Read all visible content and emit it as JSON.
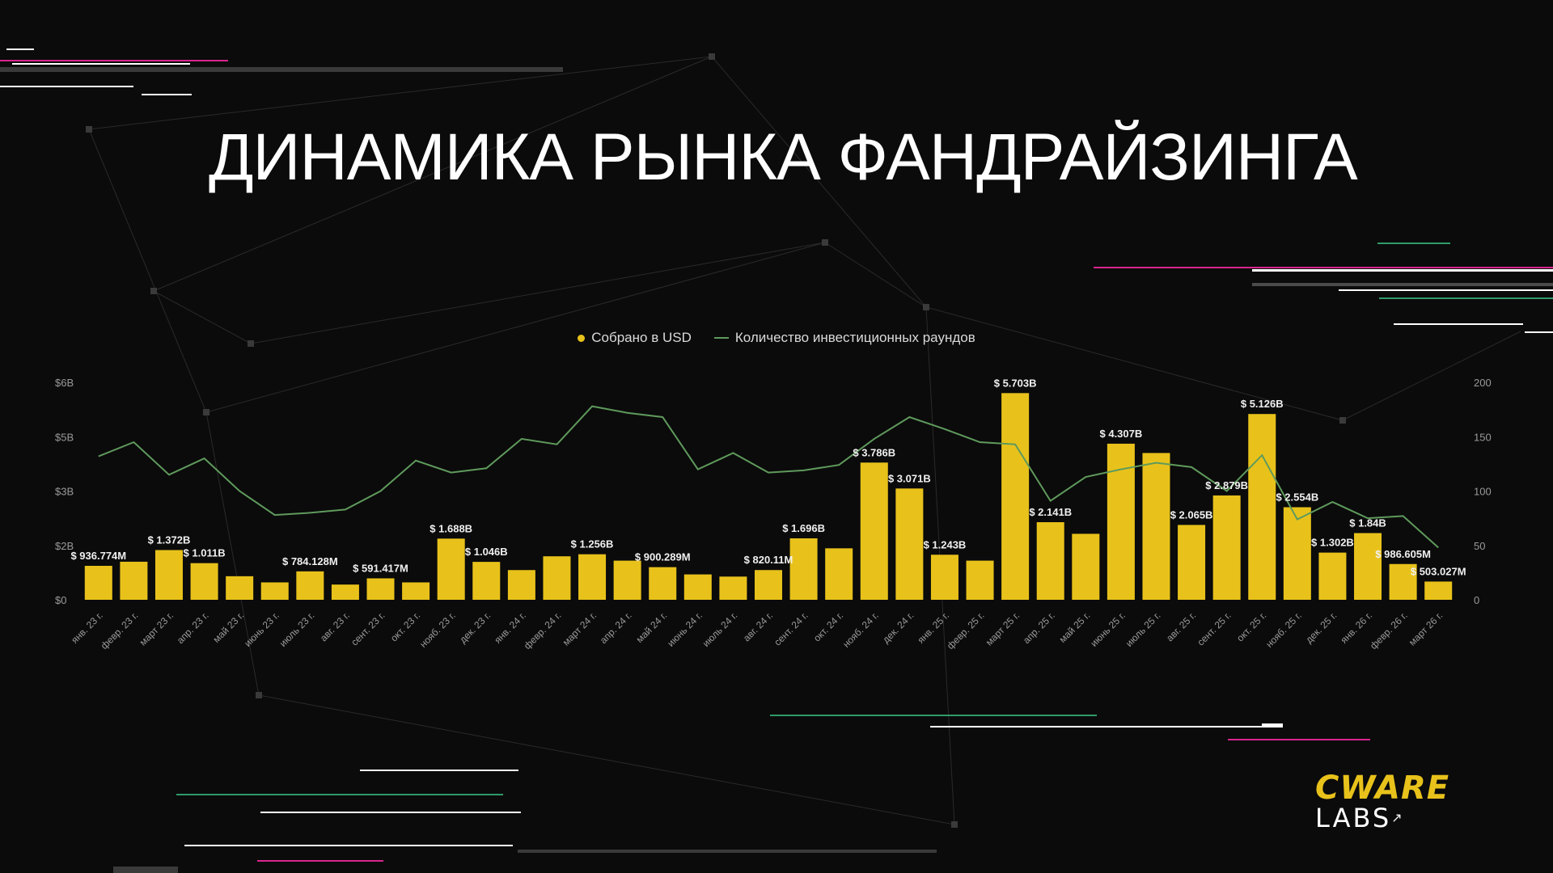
{
  "title": "ДИНАМИКА РЫНКА ФАНДРАЙЗИНГА",
  "colors": {
    "bar": "#e8c21b",
    "line": "#5f9a5c",
    "axis_text": "#9a9a9a",
    "label_text": "#f0f0f0",
    "magenta": "#d8258e",
    "green": "#2e9a6a"
  },
  "legend": {
    "bars_label": "Собрано в USD",
    "line_label": "Количество инвестиционных раундов"
  },
  "logo": {
    "line1": "CWARE",
    "line2": "LABS",
    "arrow": "↗"
  },
  "chart_data": {
    "type": "bar",
    "categories": [
      "янв. 23 г.",
      "февр. 23 г.",
      "март 23 г.",
      "апр. 23 г.",
      "май 23 г.",
      "июнь 23 г.",
      "июль 23 г.",
      "авг. 23 г.",
      "сент. 23 г.",
      "окт. 23 г.",
      "нояб. 23 г.",
      "дек. 23 г.",
      "янв. 24 г.",
      "февр. 24 г.",
      "март 24 г.",
      "апр. 24 г.",
      "май 24 г.",
      "июнь 24 г.",
      "июль 24 г.",
      "авг. 24 г.",
      "сент. 24 г.",
      "окт. 24 г.",
      "нояб. 24 г.",
      "дек. 24 г.",
      "янв. 25 г.",
      "февр. 25 г.",
      "март 25 г.",
      "апр. 25 г.",
      "май 25 г.",
      "июнь 25 г.",
      "июль 25 г.",
      "авг. 25 г.",
      "сент. 25 г.",
      "окт. 25 г.",
      "нояб. 25 г.",
      "дек. 25 г.",
      "янв. 26 г.",
      "февр. 26 г.",
      "март 26 г."
    ],
    "series": [
      {
        "name": "Собрано в USD",
        "type": "bar",
        "axis": "left",
        "values": [
          0.936774,
          1.05,
          1.372,
          1.011,
          0.65,
          0.48,
          0.784128,
          0.42,
          0.591417,
          0.48,
          1.688,
          1.046,
          0.82,
          1.2,
          1.256,
          1.08,
          0.900289,
          0.7,
          0.64,
          0.82011,
          1.696,
          1.42,
          3.786,
          3.071,
          1.243,
          1.08,
          5.703,
          2.141,
          1.82,
          4.307,
          4.05,
          2.065,
          2.879,
          5.126,
          2.554,
          1.302,
          1.84,
          0.986605,
          0.503027
        ],
        "labels": [
          "$ 936.774M",
          "",
          "$ 1.372B",
          "$ 1.011B",
          "",
          "",
          "$ 784.128M",
          "",
          "$ 591.417M",
          "",
          "$ 1.688B",
          "$ 1.046B",
          "",
          "",
          "$ 1.256B",
          "",
          "$ 900.289M",
          "",
          "",
          "$ 820.11M",
          "$ 1.696B",
          "",
          "$ 3.786B",
          "$ 3.071B",
          "$ 1.243B",
          "",
          "$ 5.703B",
          "$ 2.141B",
          "",
          "$ 4.307B",
          "",
          "$ 2.065B",
          "$ 2.879B",
          "$ 5.126B",
          "$ 2.554B",
          "$ 1.302B",
          "$ 1.84B",
          "$ 986.605M",
          "$ 503.027M"
        ]
      },
      {
        "name": "Количество инвестиционных раундов",
        "type": "line",
        "axis": "right",
        "values": [
          132,
          145,
          115,
          130,
          100,
          78,
          80,
          83,
          100,
          128,
          117,
          121,
          148,
          143,
          178,
          172,
          168,
          120,
          135,
          117,
          119,
          124,
          148,
          168,
          157,
          145,
          143,
          91,
          113,
          120,
          126,
          122,
          100,
          133,
          74,
          90,
          75,
          77,
          48
        ]
      }
    ],
    "y_left": {
      "ticks": [
        "$0",
        "$2B",
        "$3B",
        "$5B",
        "$6B"
      ],
      "ylim": [
        0,
        6
      ]
    },
    "y_right": {
      "ticks": [
        "0",
        "50",
        "100",
        "150",
        "200"
      ],
      "ylim": [
        0,
        200
      ]
    }
  }
}
